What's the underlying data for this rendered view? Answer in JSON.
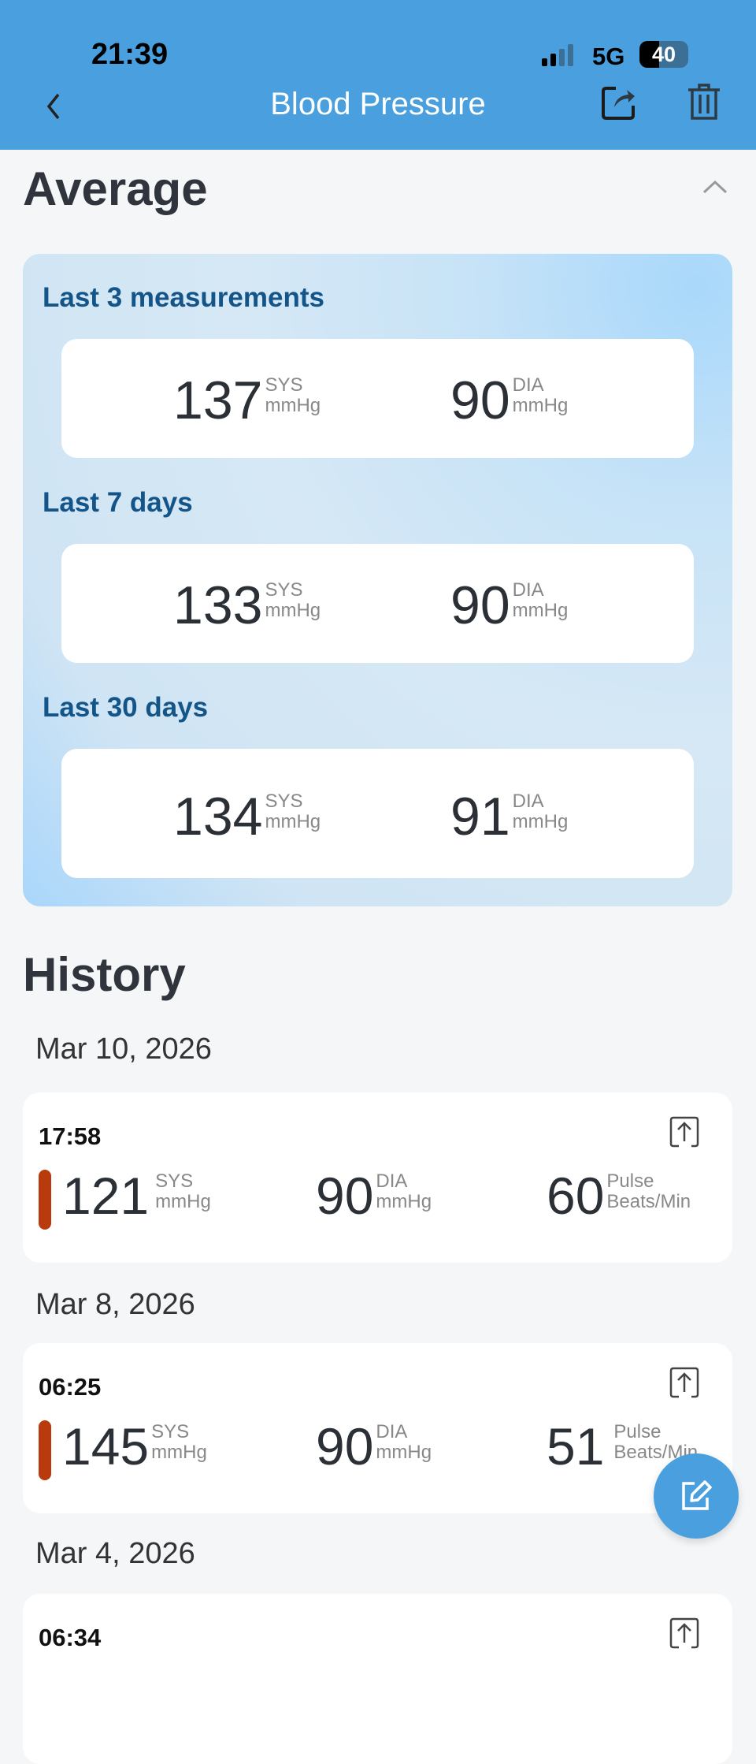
{
  "status": {
    "time": "21:39",
    "network": "5G",
    "battery": "40"
  },
  "header": {
    "title": "Blood Pressure",
    "back_icon": "chevron-left-icon",
    "share_icon": "share-icon",
    "delete_icon": "trash-icon",
    "color": "#4aa0de"
  },
  "average": {
    "title": "Average",
    "periods": [
      {
        "label": "Last 3 measurements",
        "sys": "137",
        "dia": "90"
      },
      {
        "label": "Last 7 days",
        "sys": "133",
        "dia": "90"
      },
      {
        "label": "Last 30 days",
        "sys": "134",
        "dia": "91"
      }
    ],
    "sys_label": "SYS",
    "dia_label": "DIA",
    "unit": "mmHg"
  },
  "history": {
    "title": "History",
    "pulse_label": "Pulse",
    "pulse_unit": "Beats/Min",
    "groups": [
      {
        "date": "Mar 10, 2026",
        "time": "17:58",
        "sys": "121",
        "dia": "90",
        "pulse": "60",
        "indicator_color": "#b93a0c"
      },
      {
        "date": "Mar 8, 2026",
        "time": "06:25",
        "sys": "145",
        "dia": "90",
        "pulse": "51",
        "indicator_color": "#b93a0c"
      },
      {
        "date": "Mar 4, 2026",
        "time": "06:34"
      }
    ]
  },
  "fab": {
    "icon": "edit-icon"
  }
}
